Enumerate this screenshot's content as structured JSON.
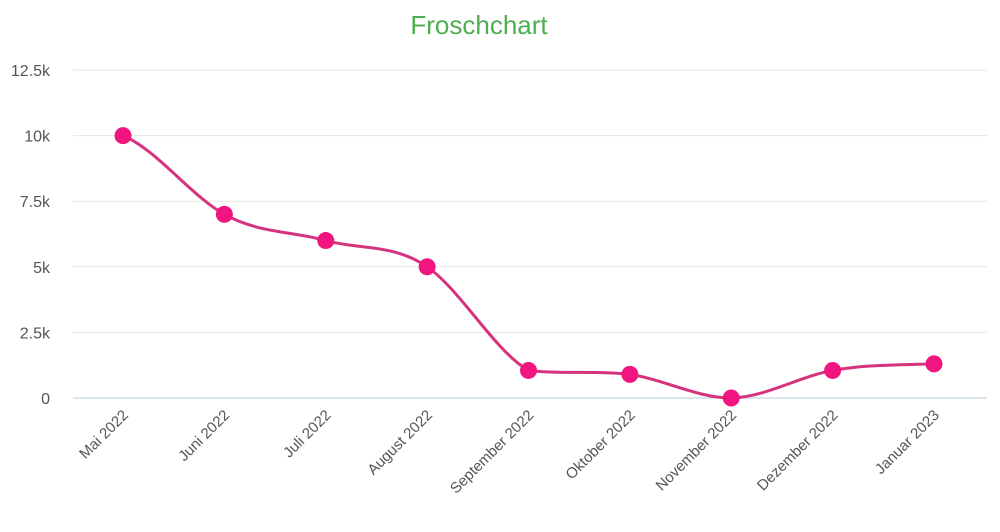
{
  "chart_data": {
    "type": "line",
    "title": "Froschchart",
    "xlabel": "",
    "ylabel": "",
    "categories": [
      "Mai 2022",
      "Juni 2022",
      "Juli 2022",
      "August 2022",
      "September 2022",
      "Oktober 2022",
      "November 2022",
      "Dezember 2022",
      "Januar 2023"
    ],
    "series": [
      {
        "name": "Froschchart",
        "values": [
          10000,
          7000,
          6000,
          5000,
          1050,
          900,
          0,
          1050,
          1300
        ],
        "color": "#d6337e",
        "marker_color": "#f0157f"
      }
    ],
    "ylim": [
      0,
      12500
    ],
    "yticks": [
      0,
      2500,
      5000,
      7500,
      10000,
      12500
    ],
    "ytick_labels": [
      "0",
      "2.5k",
      "5k",
      "7.5k",
      "10k",
      "12.5k"
    ],
    "grid": true,
    "legend": "none",
    "smooth": true
  },
  "colors": {
    "title": "#4caf50",
    "line": "#d6337e",
    "marker": "#f0157f",
    "grid": "#e6e6e6",
    "baseline": "#cfdde6"
  }
}
